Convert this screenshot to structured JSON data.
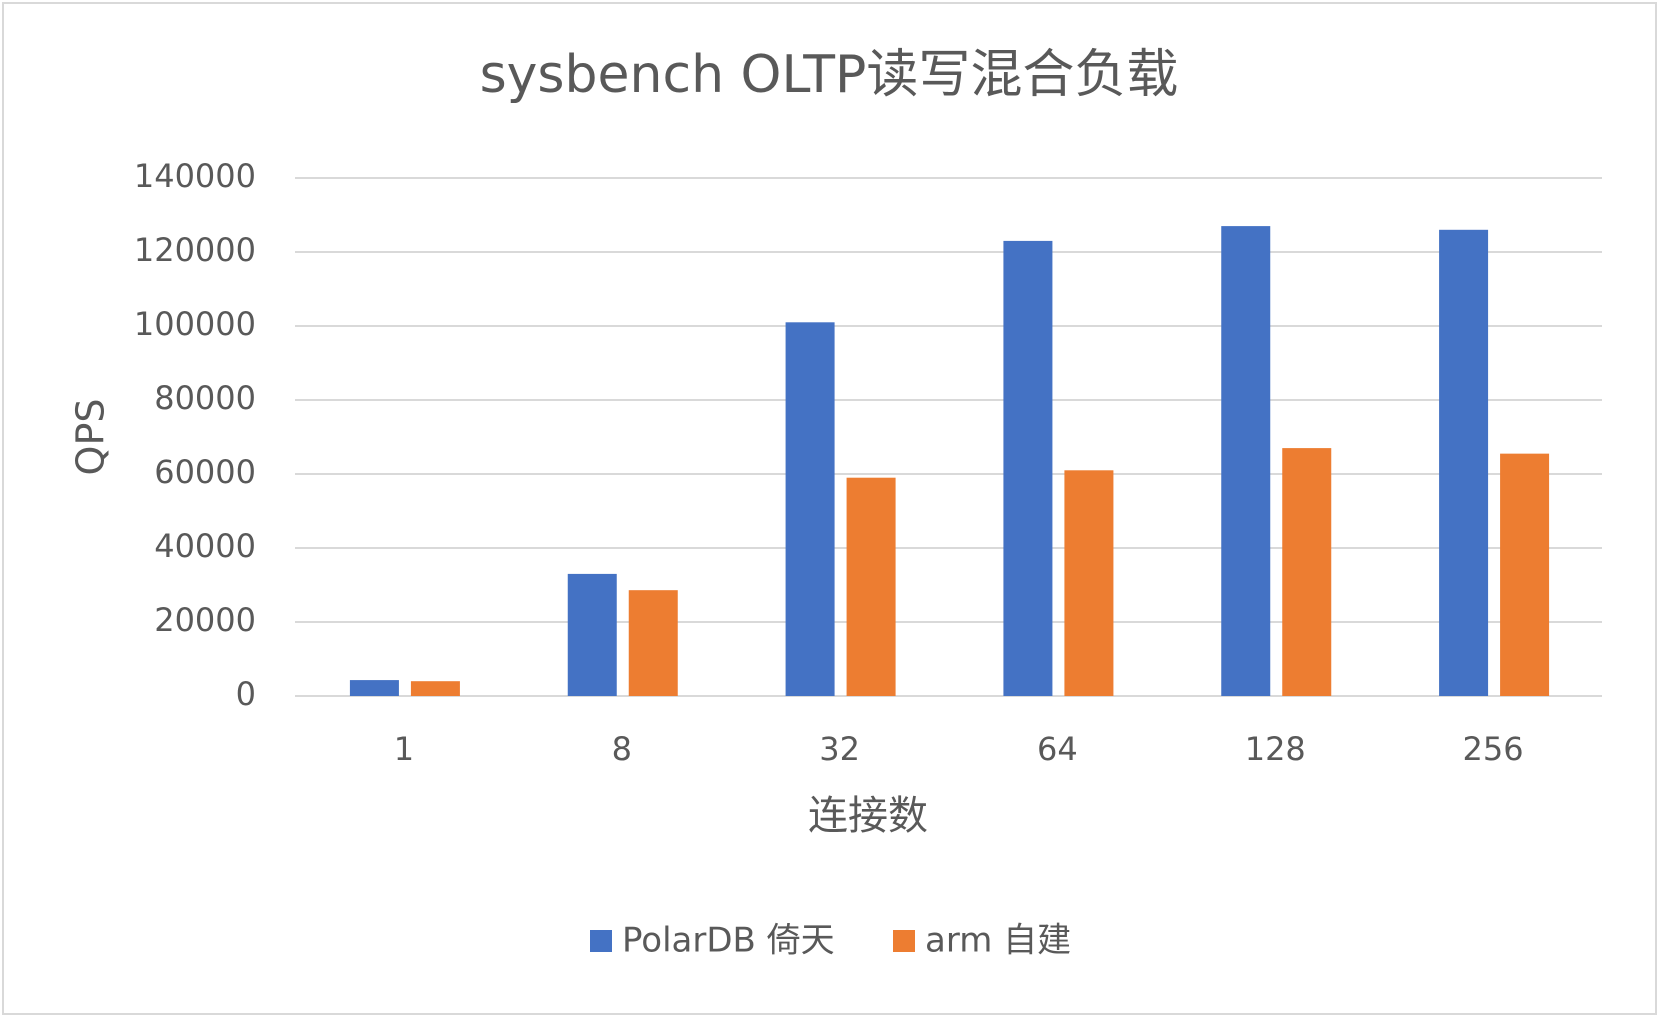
{
  "chart_data": {
    "type": "bar",
    "title": "sysbench OLTP读写混合负载",
    "x_label": "连接数",
    "y_label": "QPS",
    "categories": [
      "1",
      "8",
      "32",
      "64",
      "128",
      "256"
    ],
    "series": [
      {
        "name": "PolarDB 倚天",
        "color": "#4472c4",
        "values": [
          4300,
          33000,
          101000,
          123000,
          127000,
          126000
        ]
      },
      {
        "name": "arm 自建",
        "color": "#ed7d31",
        "values": [
          4000,
          28600,
          59000,
          61000,
          67000,
          65500
        ]
      }
    ],
    "ylim": [
      0,
      140000
    ],
    "yticks": [
      0,
      20000,
      40000,
      60000,
      80000,
      100000,
      120000,
      140000
    ],
    "grid": true,
    "legend": "bottom"
  }
}
